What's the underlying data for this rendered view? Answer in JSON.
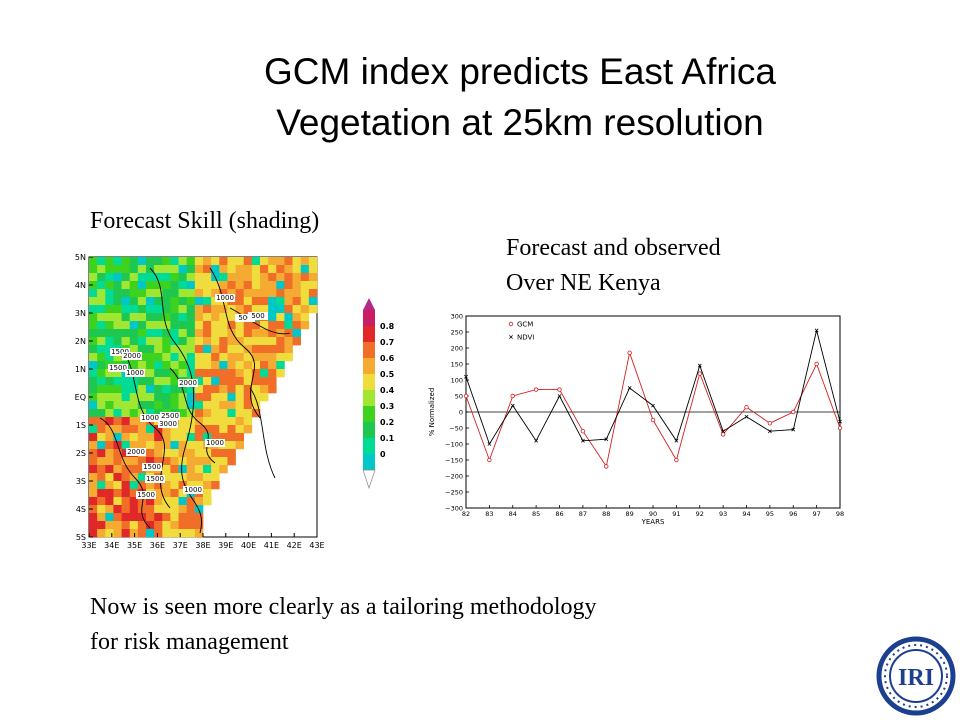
{
  "slide": {
    "title_line1": "GCM index predicts East Africa",
    "title_line2": "Vegetation at 25km resolution",
    "skill_label": "Forecast Skill (shading)",
    "forecast_label_line1": "Forecast and observed",
    "forecast_label_line2": "Over NE Kenya",
    "bottom_line1": "Now is seen more clearly as a tailoring methodology",
    "bottom_line2": "for risk management",
    "logo_text": "IRI"
  },
  "colors": {
    "logo_blue": "#1c3f8f"
  },
  "chart_data": [
    {
      "type": "heatmap",
      "description": "Forecast skill map",
      "x_ticks": [
        "33E",
        "34E",
        "35E",
        "36E",
        "37E",
        "38E",
        "39E",
        "40E",
        "41E",
        "42E",
        "43E"
      ],
      "y_ticks": [
        "5N",
        "4N",
        "3N",
        "2N",
        "1N",
        "EQ",
        "1S",
        "2S",
        "3S",
        "4S",
        "5S"
      ],
      "colorbar_ticks": [
        "0",
        "0.1",
        "0.2",
        "0.3",
        "0.4",
        "0.5",
        "0.6",
        "0.7",
        "0.8"
      ],
      "colorbar_colors": [
        "#00c8c8",
        "#00dc96",
        "#1ec850",
        "#3cd21e",
        "#a0e632",
        "#f0dc3c",
        "#f5aa32",
        "#f06e28",
        "#e12828",
        "#c81e64"
      ],
      "contour_labels": [
        "1000",
        "500",
        "1500",
        "2000",
        "1500",
        "1000",
        "2000",
        "2500",
        "3000",
        "1000",
        "2000",
        "1000",
        "1500",
        "1500",
        "1500",
        "1000",
        "500"
      ]
    },
    {
      "type": "line",
      "ylabel": "% Normalized",
      "xlabel": "YEARS",
      "x": [
        "82",
        "83",
        "84",
        "85",
        "86",
        "87",
        "88",
        "89",
        "90",
        "91",
        "92",
        "93",
        "94",
        "95",
        "96",
        "97",
        "98"
      ],
      "ylim": [
        -300,
        300
      ],
      "y_ticks": [
        300,
        250,
        200,
        150,
        100,
        50,
        0,
        -50,
        -100,
        -150,
        -200,
        -250,
        -300
      ],
      "series": [
        {
          "name": "GCM",
          "color": "#d42020",
          "marker": "circle",
          "values": [
            50,
            -150,
            50,
            70,
            70,
            -60,
            -170,
            185,
            -25,
            -150,
            120,
            -70,
            15,
            -35,
            0,
            150,
            -50
          ]
        },
        {
          "name": "NDVI",
          "color": "#000000",
          "marker": "x",
          "values": [
            110,
            -100,
            20,
            -90,
            50,
            -90,
            -85,
            75,
            20,
            -90,
            145,
            -60,
            -15,
            -60,
            -55,
            255,
            -30
          ]
        }
      ]
    }
  ]
}
